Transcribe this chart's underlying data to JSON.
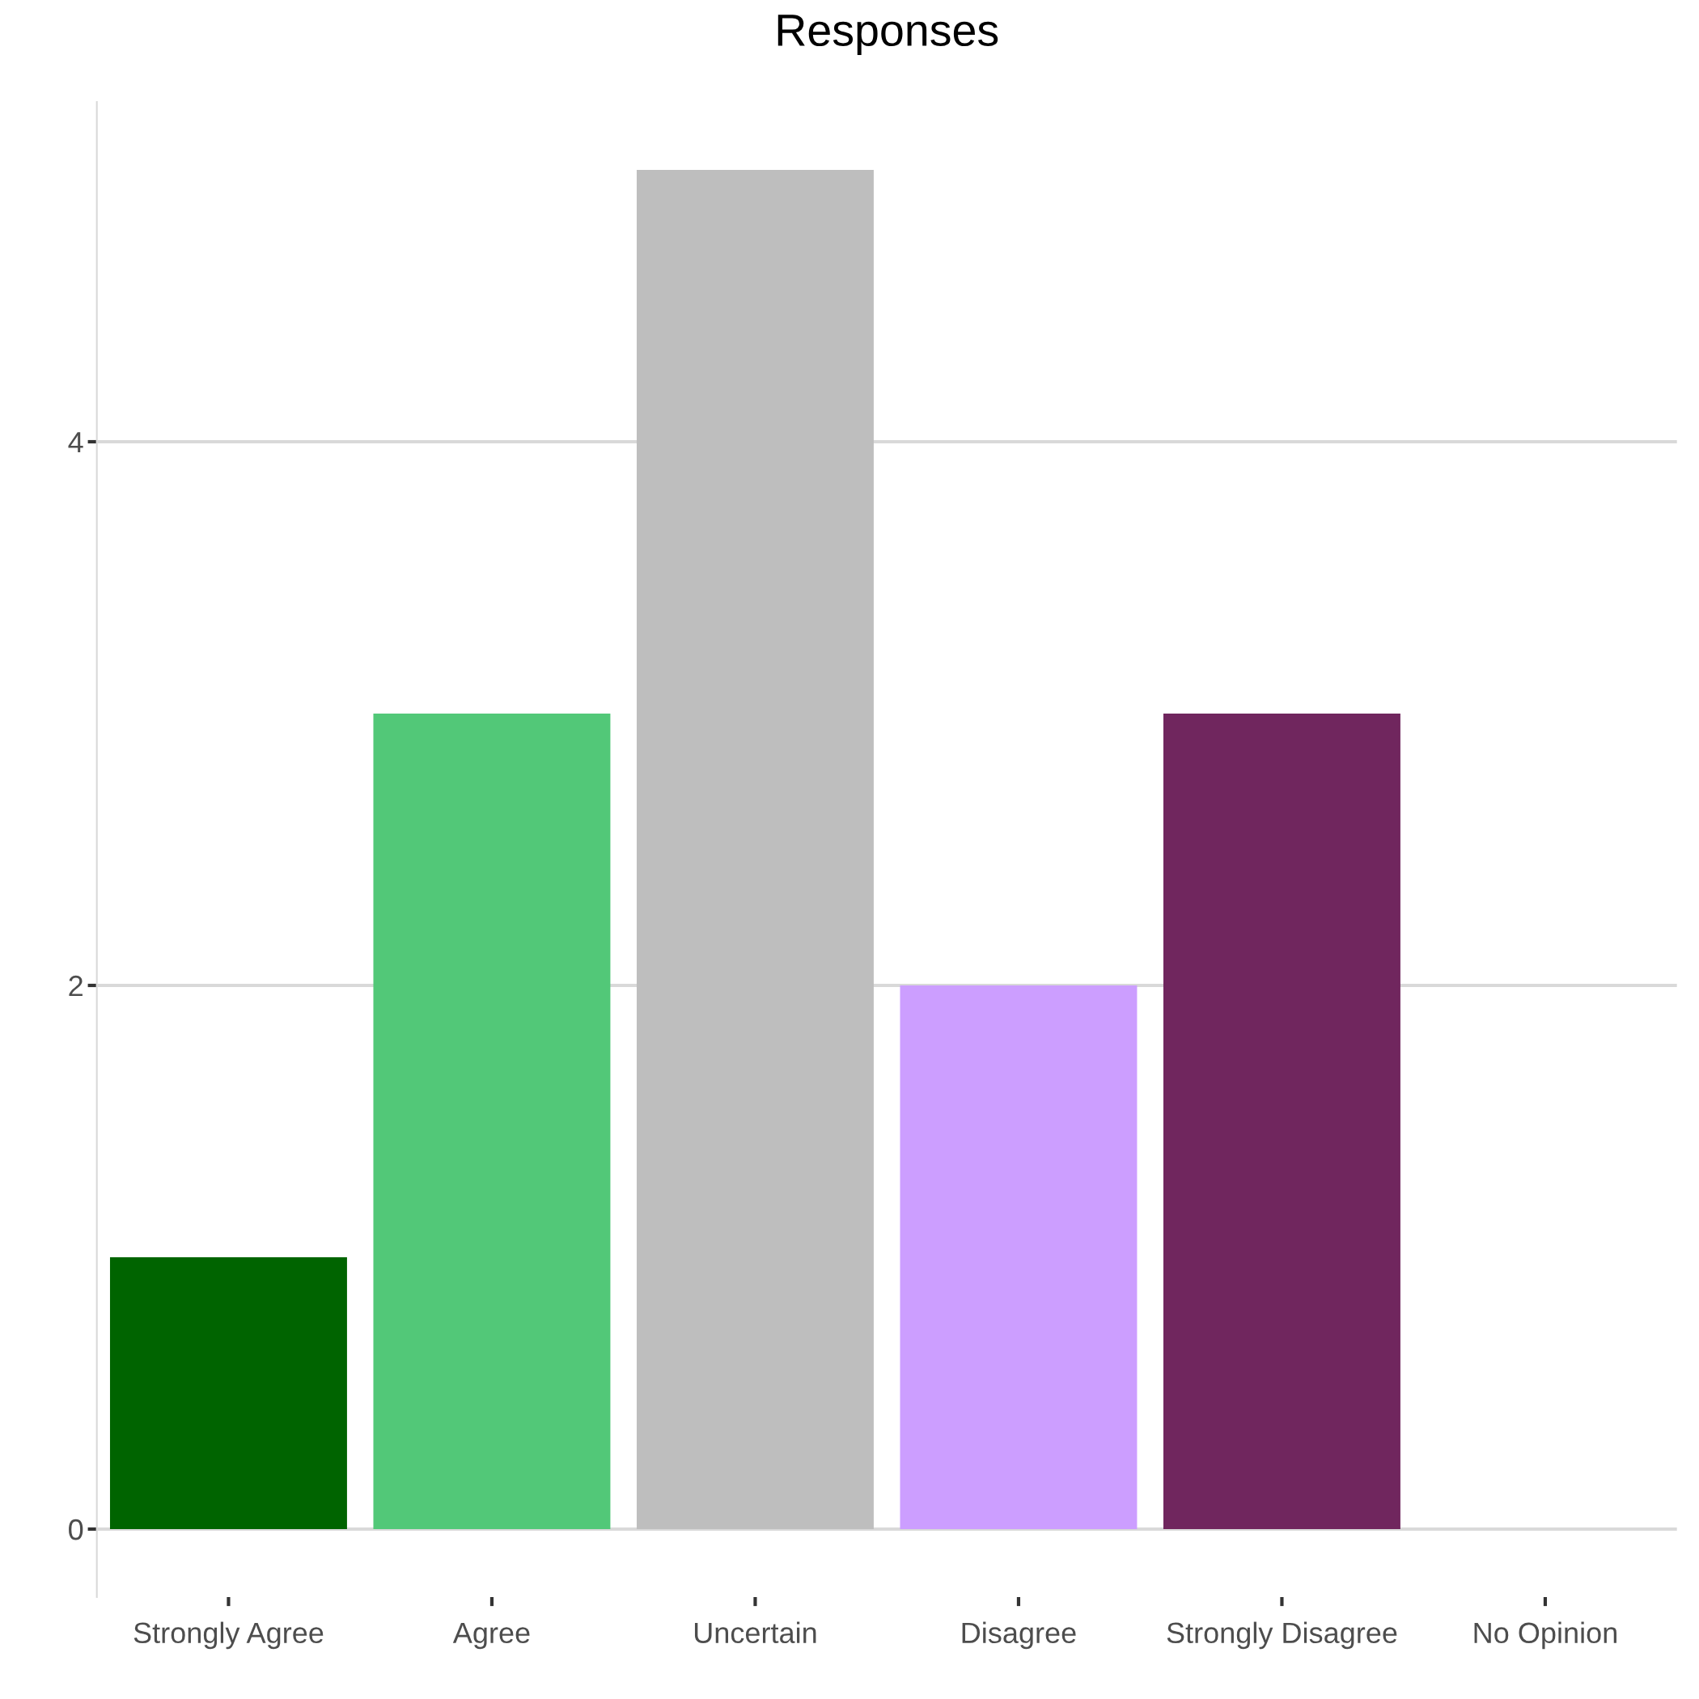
{
  "chart_data": {
    "type": "bar",
    "title": "Responses",
    "categories": [
      "Strongly Agree",
      "Agree",
      "Uncertain",
      "Disagree",
      "Strongly Disagree",
      "No Opinion"
    ],
    "values": [
      1,
      3,
      5,
      2,
      3,
      0
    ],
    "colors": [
      "#006400",
      "#52c878",
      "#bebebe",
      "#cc9eff",
      "#70265e",
      "#d9d9d9"
    ],
    "ylim": [
      -0.25,
      5.25
    ],
    "yticks": [
      0,
      2,
      4
    ],
    "grid": "y",
    "legend": false
  }
}
